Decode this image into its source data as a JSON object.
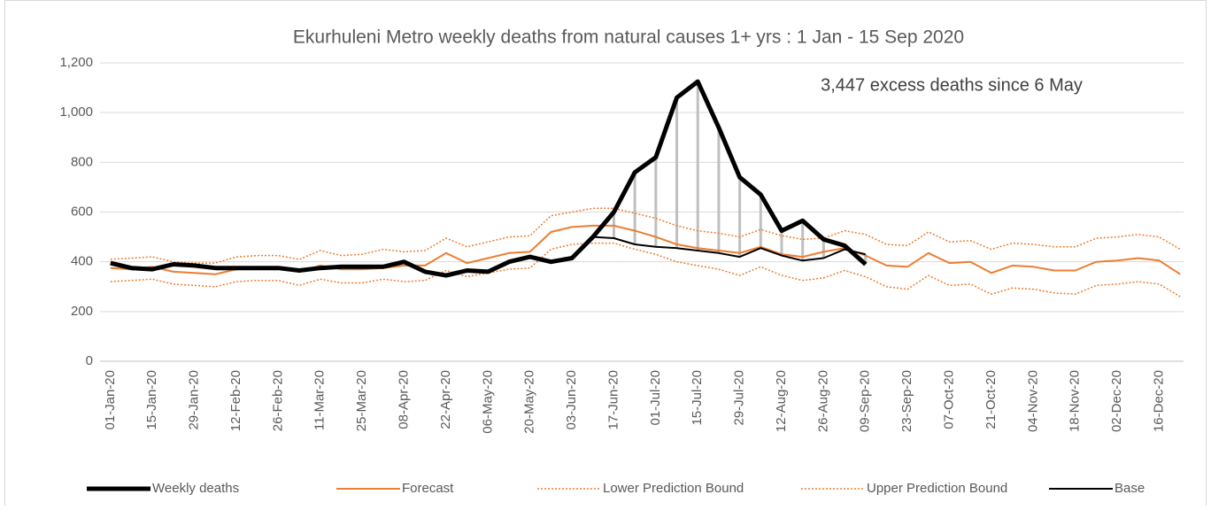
{
  "chart_data": {
    "type": "line",
    "title": "Ekurhuleni Metro weekly deaths from natural causes 1+ yrs : 1 Jan - 15 Sep 2020",
    "annotation": "3,447 excess deaths since 6 May",
    "categories": [
      "01-Jan-20",
      null,
      "15-Jan-20",
      null,
      "29-Jan-20",
      null,
      "12-Feb-20",
      null,
      "26-Feb-20",
      null,
      "11-Mar-20",
      null,
      "25-Mar-20",
      null,
      "08-Apr-20",
      null,
      "22-Apr-20",
      null,
      "06-May-20",
      null,
      "20-May-20",
      null,
      "03-Jun-20",
      null,
      "17-Jun-20",
      null,
      "01-Jul-20",
      null,
      "15-Jul-20",
      null,
      "29-Jul-20",
      null,
      "12-Aug-20",
      null,
      "26-Aug-20",
      null,
      "09-Sep-20",
      null,
      "23-Sep-20",
      null,
      "07-Oct-20",
      null,
      "21-Oct-20",
      null,
      "04-Nov-20",
      null,
      "18-Nov-20",
      null,
      "02-Dec-20",
      null,
      "16-Dec-20",
      null
    ],
    "ylim": [
      0,
      1200
    ],
    "yticks": [
      0,
      200,
      400,
      600,
      800,
      {
        "value": 1000,
        "label": "1,000"
      },
      {
        "value": 1200,
        "label": "1,200"
      }
    ],
    "grid": true,
    "legend": "bottom",
    "series": [
      {
        "name": "Weekly deaths",
        "color": "#000000",
        "dash": "solid",
        "values": [
          395,
          375,
          370,
          390,
          385,
          375,
          375,
          375,
          375,
          365,
          375,
          380,
          380,
          380,
          400,
          360,
          345,
          365,
          360,
          400,
          420,
          400,
          415,
          500,
          600,
          760,
          820,
          1060,
          1125,
          940,
          740,
          670,
          525,
          565,
          490,
          465,
          390,
          null,
          null,
          null,
          null,
          null,
          null,
          null,
          null,
          null,
          null,
          null,
          null,
          null,
          null,
          null
        ]
      },
      {
        "name": "Forecast",
        "color": "#ed7d31",
        "dash": "solid",
        "values": [
          375,
          370,
          380,
          360,
          355,
          350,
          370,
          375,
          375,
          360,
          385,
          370,
          370,
          375,
          385,
          385,
          435,
          395,
          415,
          435,
          440,
          520,
          540,
          545,
          545,
          525,
          500,
          470,
          455,
          445,
          435,
          460,
          430,
          420,
          440,
          455,
          425,
          385,
          380,
          435,
          395,
          400,
          355,
          385,
          380,
          365,
          365,
          400,
          405,
          415,
          405,
          350
        ]
      },
      {
        "name": "Lower Prediction Bound",
        "color": "#ed7d31",
        "dash": "dotted",
        "values": [
          320,
          325,
          330,
          310,
          305,
          300,
          320,
          325,
          325,
          305,
          330,
          315,
          315,
          330,
          320,
          325,
          365,
          340,
          355,
          370,
          375,
          450,
          470,
          475,
          475,
          450,
          430,
          400,
          385,
          370,
          345,
          380,
          345,
          325,
          335,
          365,
          340,
          300,
          290,
          345,
          305,
          310,
          270,
          295,
          290,
          275,
          270,
          305,
          310,
          320,
          310,
          260
        ]
      },
      {
        "name": "Upper Prediction Bound",
        "color": "#ed7d31",
        "dash": "dotted",
        "values": [
          410,
          415,
          420,
          400,
          395,
          395,
          420,
          425,
          425,
          410,
          445,
          425,
          430,
          450,
          440,
          445,
          495,
          460,
          480,
          500,
          505,
          585,
          600,
          615,
          615,
          595,
          575,
          545,
          525,
          515,
          500,
          530,
          505,
          490,
          495,
          525,
          510,
          470,
          465,
          520,
          480,
          485,
          450,
          475,
          470,
          460,
          460,
          495,
          500,
          510,
          500,
          450
        ]
      },
      {
        "name": "Base",
        "color": "#000000",
        "dash": "solid",
        "values": [
          null,
          null,
          null,
          null,
          null,
          null,
          null,
          null,
          null,
          null,
          null,
          null,
          null,
          null,
          null,
          null,
          null,
          null,
          null,
          null,
          null,
          null,
          null,
          500,
          495,
          470,
          460,
          455,
          445,
          435,
          420,
          455,
          425,
          405,
          415,
          450,
          430,
          null,
          null,
          null,
          null,
          null,
          null,
          null,
          null,
          null,
          null,
          null,
          null,
          null,
          null,
          null
        ]
      }
    ]
  }
}
